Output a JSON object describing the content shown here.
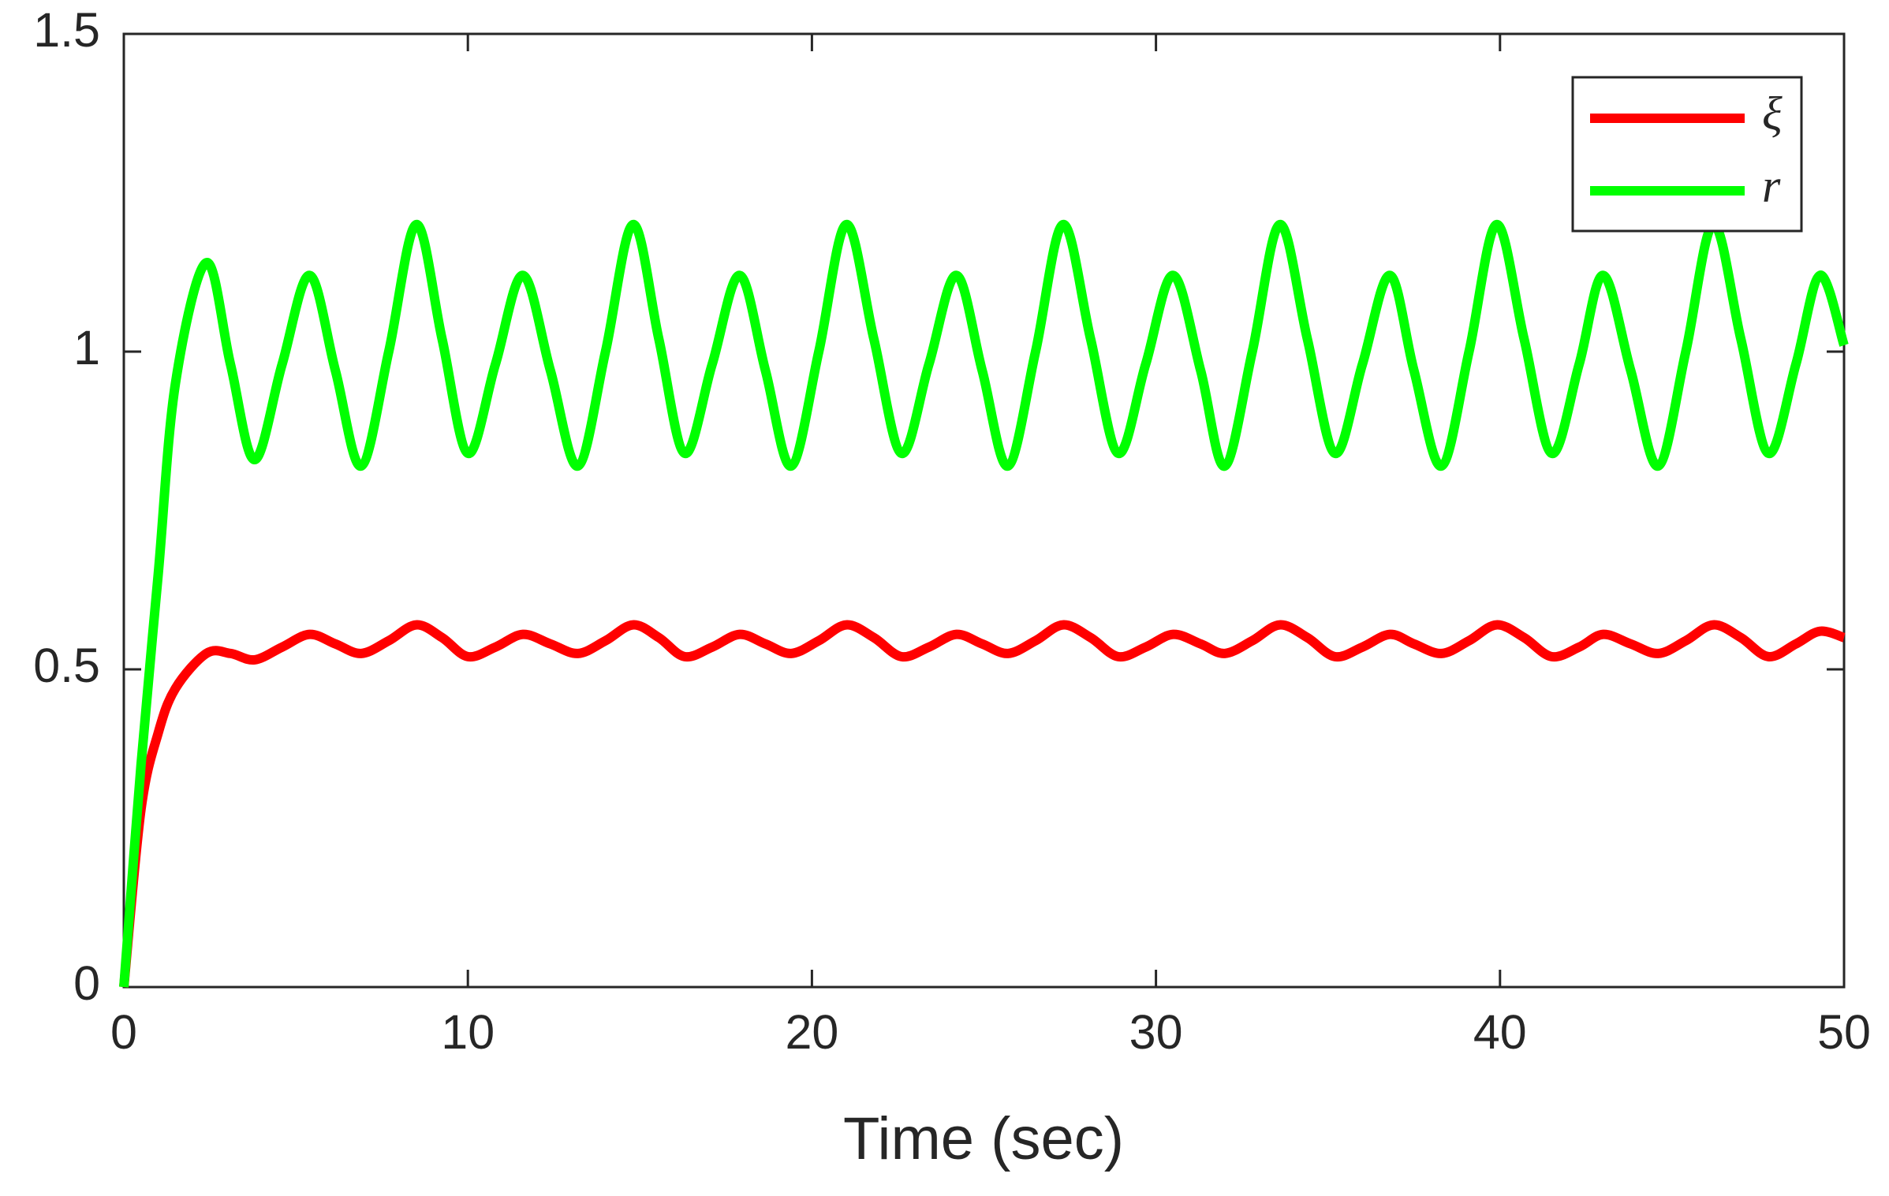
{
  "chart_data": {
    "type": "line",
    "xlabel": "Time (sec)",
    "x": [
      0,
      0.5,
      1,
      1.5,
      2.4,
      3.1,
      3.8,
      4.6,
      5.4,
      6.15,
      6.9,
      7.7,
      8.5,
      9.25,
      10,
      10.8,
      11.6,
      12.4,
      13.2,
      14,
      14.8,
      15.55,
      16.3,
      17.1,
      17.9,
      18.65,
      19.4,
      20.2,
      21,
      21.8,
      22.6,
      23.4,
      24.2,
      24.95,
      25.7,
      26.5,
      27.3,
      28.1,
      28.9,
      29.7,
      30.5,
      31.3,
      32,
      32.8,
      33.6,
      34.4,
      35.2,
      36,
      36.8,
      37.5,
      38.3,
      39.1,
      39.9,
      40.7,
      41.5,
      42.3,
      43,
      43.8,
      44.6,
      45.4,
      46.2,
      47,
      47.8,
      48.6,
      49.3,
      50
    ],
    "series": [
      {
        "name": "ξ",
        "color": "#ff0000",
        "values": [
          0,
          0.28,
          0.4,
          0.47,
          0.525,
          0.525,
          0.515,
          0.535,
          0.555,
          0.54,
          0.525,
          0.545,
          0.57,
          0.55,
          0.52,
          0.535,
          0.555,
          0.54,
          0.525,
          0.545,
          0.57,
          0.55,
          0.52,
          0.535,
          0.555,
          0.54,
          0.525,
          0.545,
          0.57,
          0.55,
          0.52,
          0.535,
          0.555,
          0.54,
          0.525,
          0.545,
          0.57,
          0.55,
          0.52,
          0.535,
          0.555,
          0.54,
          0.525,
          0.545,
          0.57,
          0.55,
          0.52,
          0.535,
          0.555,
          0.54,
          0.525,
          0.545,
          0.57,
          0.55,
          0.52,
          0.535,
          0.555,
          0.54,
          0.525,
          0.545,
          0.57,
          0.55,
          0.52,
          0.54,
          0.56,
          0.55
        ]
      },
      {
        "name": "r",
        "color": "#00ff00",
        "values": [
          0,
          0.35,
          0.65,
          0.95,
          1.14,
          0.98,
          0.83,
          0.98,
          1.12,
          0.97,
          0.82,
          1.0,
          1.2,
          1.02,
          0.84,
          0.98,
          1.12,
          0.97,
          0.82,
          1.0,
          1.2,
          1.02,
          0.84,
          0.98,
          1.12,
          0.97,
          0.82,
          1.0,
          1.2,
          1.02,
          0.84,
          0.98,
          1.12,
          0.97,
          0.82,
          1.0,
          1.2,
          1.02,
          0.84,
          0.98,
          1.12,
          0.97,
          0.82,
          1.0,
          1.2,
          1.02,
          0.84,
          0.98,
          1.12,
          0.97,
          0.82,
          1.0,
          1.2,
          1.02,
          0.84,
          0.98,
          1.12,
          0.97,
          0.82,
          1.0,
          1.2,
          1.02,
          0.84,
          0.98,
          1.12,
          1.01
        ]
      }
    ],
    "xlim": [
      0,
      50
    ],
    "xticks": [
      0,
      10,
      20,
      30,
      40,
      50
    ],
    "ylim": [
      0,
      1.5
    ],
    "yticks": [
      0,
      0.5,
      1,
      1.5
    ],
    "legend": "upper right"
  }
}
